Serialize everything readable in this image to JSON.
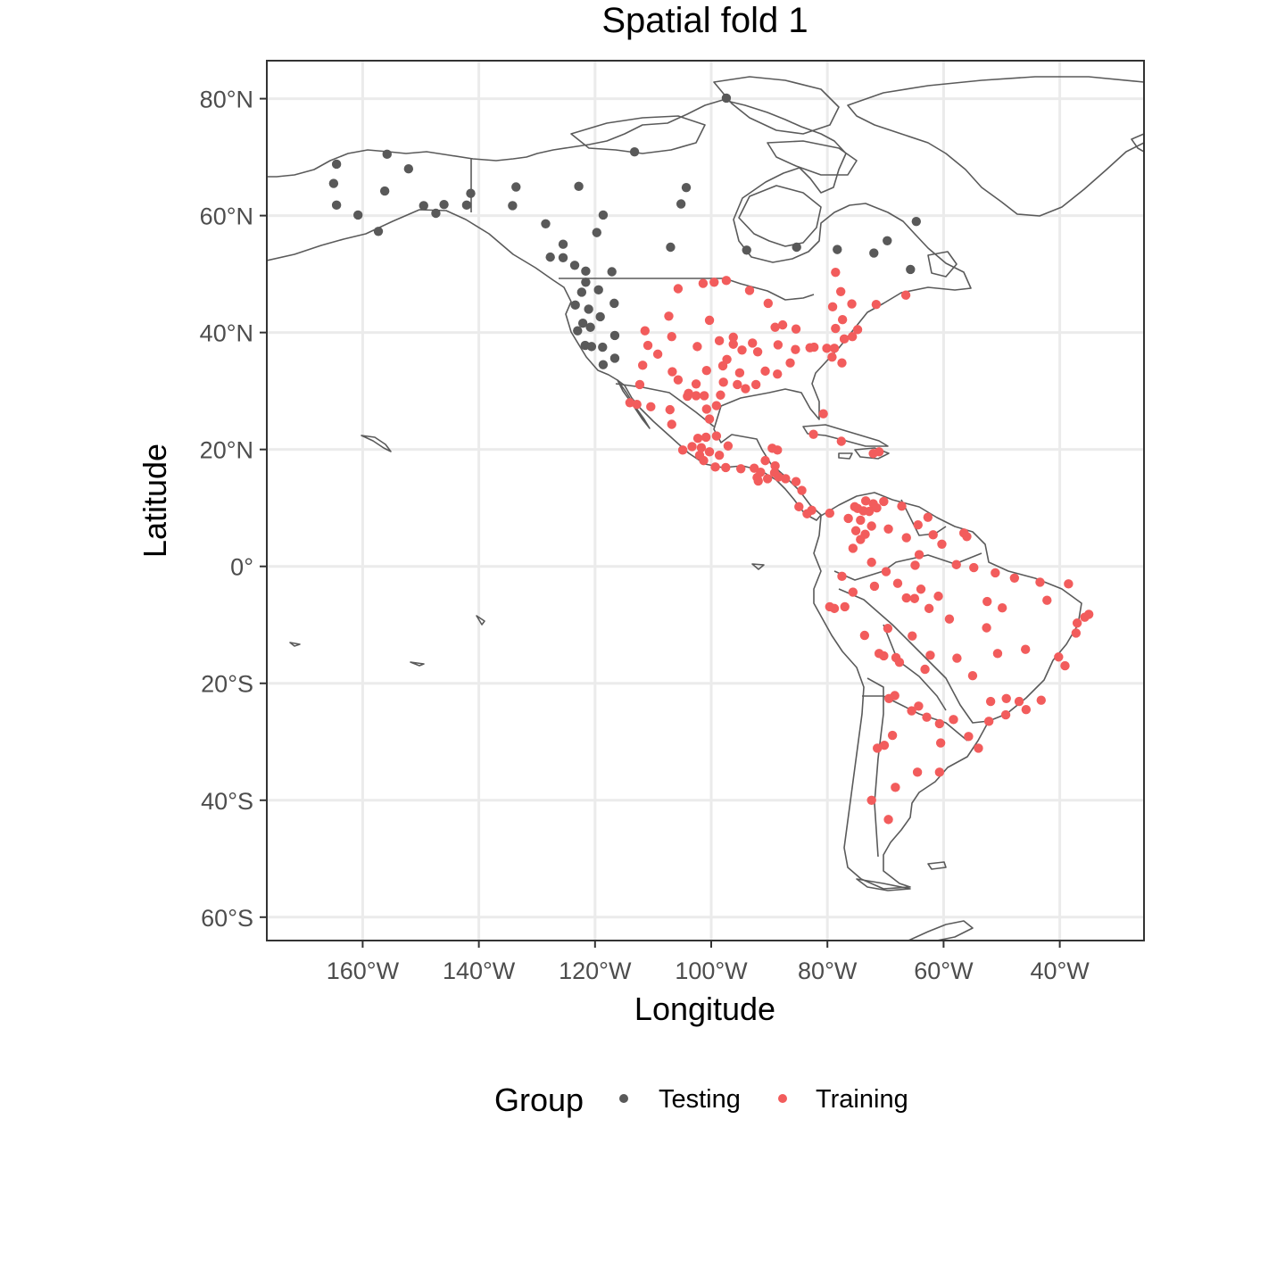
{
  "chart_data": {
    "type": "scatter",
    "title": "Spatial fold 1",
    "xlabel": "Longitude",
    "ylabel": "Latitude",
    "xlim": [
      -176.5,
      -25.5
    ],
    "ylim": [
      -64,
      86.5
    ],
    "grid": true,
    "legend": {
      "title": "Group",
      "position": "bottom"
    },
    "x_ticks": [
      {
        "value": -160,
        "label": "160°W"
      },
      {
        "value": -140,
        "label": "140°W"
      },
      {
        "value": -120,
        "label": "120°W"
      },
      {
        "value": -100,
        "label": "100°W"
      },
      {
        "value": -80,
        "label": "80°W"
      },
      {
        "value": -60,
        "label": "60°W"
      },
      {
        "value": -40,
        "label": "40°W"
      }
    ],
    "y_ticks": [
      {
        "value": 80,
        "label": "80°N"
      },
      {
        "value": 60,
        "label": "60°N"
      },
      {
        "value": 40,
        "label": "40°N"
      },
      {
        "value": 20,
        "label": "20°N"
      },
      {
        "value": 0,
        "label": "0°"
      },
      {
        "value": -20,
        "label": "20°S"
      },
      {
        "value": -40,
        "label": "40°S"
      },
      {
        "value": -60,
        "label": "60°S"
      }
    ],
    "series": [
      {
        "name": "Testing",
        "color": "#595959",
        "points": [
          [
            -164.5,
            68.8
          ],
          [
            -165.0,
            65.5
          ],
          [
            -155.8,
            70.5
          ],
          [
            -152.1,
            68.0
          ],
          [
            -156.2,
            64.2
          ],
          [
            -164.5,
            61.8
          ],
          [
            -160.8,
            60.1
          ],
          [
            -157.3,
            57.3
          ],
          [
            -147.4,
            60.4
          ],
          [
            -149.5,
            61.7
          ],
          [
            -146.0,
            61.9
          ],
          [
            -142.1,
            61.8
          ],
          [
            -141.4,
            63.8
          ],
          [
            -133.6,
            64.9
          ],
          [
            -134.2,
            61.7
          ],
          [
            -128.5,
            58.6
          ],
          [
            -122.8,
            65.0
          ],
          [
            -118.6,
            60.1
          ],
          [
            -119.7,
            57.1
          ],
          [
            -125.5,
            55.1
          ],
          [
            -125.5,
            52.8
          ],
          [
            -123.5,
            51.5
          ],
          [
            -127.7,
            52.9
          ],
          [
            -121.6,
            50.5
          ],
          [
            -121.6,
            48.6
          ],
          [
            -117.1,
            50.4
          ],
          [
            -122.3,
            46.9
          ],
          [
            -119.4,
            47.3
          ],
          [
            -123.4,
            44.7
          ],
          [
            -121.1,
            44.0
          ],
          [
            -119.1,
            42.7
          ],
          [
            -116.7,
            45.0
          ],
          [
            -120.8,
            40.9
          ],
          [
            -123.0,
            40.3
          ],
          [
            -122.1,
            41.6
          ],
          [
            -116.6,
            39.5
          ],
          [
            -121.7,
            37.8
          ],
          [
            -120.6,
            37.6
          ],
          [
            -118.7,
            37.5
          ],
          [
            -116.6,
            35.6
          ],
          [
            -118.6,
            34.5
          ],
          [
            -113.2,
            70.9
          ],
          [
            -104.3,
            64.8
          ],
          [
            -105.2,
            62.0
          ],
          [
            -107.0,
            54.6
          ],
          [
            -93.9,
            54.1
          ],
          [
            -85.3,
            54.6
          ],
          [
            -69.7,
            55.7
          ],
          [
            -64.7,
            59.0
          ],
          [
            -65.7,
            50.8
          ],
          [
            -97.4,
            80.1
          ],
          [
            -72.0,
            53.6
          ],
          [
            -78.3,
            54.2
          ]
        ]
      },
      {
        "name": "Training",
        "color": "#f25c5c",
        "points": [
          [
            -105.7,
            47.5
          ],
          [
            -101.4,
            48.4
          ],
          [
            -99.5,
            48.6
          ],
          [
            -97.4,
            48.9
          ],
          [
            -93.4,
            47.2
          ],
          [
            -90.2,
            45.0
          ],
          [
            -87.7,
            41.3
          ],
          [
            -78.6,
            50.3
          ],
          [
            -77.7,
            47.0
          ],
          [
            -79.1,
            44.4
          ],
          [
            -75.8,
            44.9
          ],
          [
            -71.6,
            44.8
          ],
          [
            -66.5,
            46.4
          ],
          [
            -77.4,
            42.2
          ],
          [
            -74.8,
            40.5
          ],
          [
            -75.7,
            39.3
          ],
          [
            -77.1,
            38.9
          ],
          [
            -78.8,
            37.3
          ],
          [
            -79.2,
            35.8
          ],
          [
            -77.5,
            34.8
          ],
          [
            -78.6,
            40.7
          ],
          [
            -82.3,
            37.5
          ],
          [
            -85.5,
            37.1
          ],
          [
            -86.4,
            34.8
          ],
          [
            -88.6,
            32.9
          ],
          [
            -90.7,
            33.4
          ],
          [
            -92.3,
            31.1
          ],
          [
            -94.1,
            30.4
          ],
          [
            -95.1,
            33.1
          ],
          [
            -97.9,
            31.5
          ],
          [
            -98.4,
            29.3
          ],
          [
            -101.2,
            29.2
          ],
          [
            -100.8,
            33.5
          ],
          [
            -102.6,
            31.2
          ],
          [
            -103.9,
            29.6
          ],
          [
            -105.7,
            31.9
          ],
          [
            -106.7,
            33.3
          ],
          [
            -109.2,
            36.3
          ],
          [
            -111.8,
            34.4
          ],
          [
            -112.3,
            31.1
          ],
          [
            -110.9,
            37.8
          ],
          [
            -111.4,
            40.3
          ],
          [
            -106.8,
            39.3
          ],
          [
            -102.4,
            37.6
          ],
          [
            -100.3,
            42.1
          ],
          [
            -98.6,
            38.6
          ],
          [
            -97.3,
            35.4
          ],
          [
            -96.2,
            38.0
          ],
          [
            -94.7,
            37.0
          ],
          [
            -92.9,
            38.2
          ],
          [
            -92.0,
            36.7
          ],
          [
            -89.0,
            40.9
          ],
          [
            -88.5,
            37.9
          ],
          [
            -85.4,
            40.6
          ],
          [
            -83.0,
            37.4
          ],
          [
            -80.1,
            37.3
          ],
          [
            -96.2,
            39.2
          ],
          [
            -98.0,
            34.3
          ],
          [
            -95.5,
            31.1
          ],
          [
            -107.3,
            42.8
          ],
          [
            -112.8,
            27.7
          ],
          [
            -114.0,
            28.0
          ],
          [
            -110.4,
            27.3
          ],
          [
            -107.1,
            26.8
          ],
          [
            -106.8,
            24.3
          ],
          [
            -104.1,
            29.1
          ],
          [
            -102.6,
            29.2
          ],
          [
            -100.8,
            26.9
          ],
          [
            -99.1,
            27.5
          ],
          [
            -100.3,
            25.2
          ],
          [
            -100.9,
            22.1
          ],
          [
            -102.3,
            21.9
          ],
          [
            -99.1,
            22.3
          ],
          [
            -104.9,
            19.9
          ],
          [
            -103.3,
            20.5
          ],
          [
            -101.7,
            20.3
          ],
          [
            -100.3,
            19.6
          ],
          [
            -98.6,
            19.0
          ],
          [
            -97.1,
            20.6
          ],
          [
            -102.0,
            19.0
          ],
          [
            -101.3,
            18.1
          ],
          [
            -99.3,
            17.0
          ],
          [
            -97.5,
            16.9
          ],
          [
            -94.9,
            16.7
          ],
          [
            -92.6,
            16.8
          ],
          [
            -91.5,
            16.1
          ],
          [
            -92.1,
            15.2
          ],
          [
            -90.3,
            15.0
          ],
          [
            -88.4,
            15.3
          ],
          [
            -91.9,
            14.6
          ],
          [
            -87.2,
            15.0
          ],
          [
            -89.0,
            17.2
          ],
          [
            -89.5,
            20.2
          ],
          [
            -88.6,
            19.9
          ],
          [
            -89.1,
            16.0
          ],
          [
            -90.7,
            18.1
          ],
          [
            -85.4,
            14.5
          ],
          [
            -84.4,
            13.0
          ],
          [
            -84.9,
            10.2
          ],
          [
            -82.7,
            9.6
          ],
          [
            -83.5,
            9.0
          ],
          [
            -79.6,
            9.1
          ],
          [
            -80.7,
            26.1
          ],
          [
            -82.4,
            22.6
          ],
          [
            -77.6,
            21.4
          ],
          [
            -72.1,
            19.3
          ],
          [
            -71.1,
            19.6
          ],
          [
            -75.3,
            10.2
          ],
          [
            -74.8,
            9.9
          ],
          [
            -73.8,
            9.5
          ],
          [
            -73.4,
            11.2
          ],
          [
            -72.1,
            10.7
          ],
          [
            -70.3,
            11.1
          ],
          [
            -67.2,
            10.3
          ],
          [
            -71.5,
            10.0
          ],
          [
            -72.8,
            9.4
          ],
          [
            -74.3,
            7.9
          ],
          [
            -76.4,
            8.2
          ],
          [
            -75.1,
            6.1
          ],
          [
            -73.5,
            5.5
          ],
          [
            -74.3,
            4.6
          ],
          [
            -75.6,
            3.1
          ],
          [
            -72.4,
            6.9
          ],
          [
            -69.5,
            6.4
          ],
          [
            -66.4,
            4.9
          ],
          [
            -64.4,
            7.1
          ],
          [
            -62.7,
            8.4
          ],
          [
            -61.8,
            5.4
          ],
          [
            -56.5,
            5.7
          ],
          [
            -56.0,
            5.1
          ],
          [
            -60.3,
            3.8
          ],
          [
            -64.2,
            2.0
          ],
          [
            -64.9,
            0.2
          ],
          [
            -69.9,
            -0.9
          ],
          [
            -72.4,
            0.7
          ],
          [
            -77.5,
            -1.7
          ],
          [
            -75.6,
            -4.4
          ],
          [
            -71.9,
            -3.4
          ],
          [
            -67.9,
            -2.9
          ],
          [
            -65.0,
            -5.5
          ],
          [
            -63.9,
            -3.9
          ],
          [
            -60.9,
            -5.1
          ],
          [
            -57.8,
            0.3
          ],
          [
            -54.8,
            -0.2
          ],
          [
            -51.1,
            -1.1
          ],
          [
            -47.8,
            -2.0
          ],
          [
            -43.4,
            -2.7
          ],
          [
            -38.5,
            -3.0
          ],
          [
            -42.2,
            -5.8
          ],
          [
            -49.9,
            -7.1
          ],
          [
            -52.5,
            -6.0
          ],
          [
            -35.0,
            -8.2
          ],
          [
            -35.7,
            -8.7
          ],
          [
            -37.0,
            -9.7
          ],
          [
            -37.2,
            -11.4
          ],
          [
            -39.1,
            -17.0
          ],
          [
            -40.2,
            -15.5
          ],
          [
            -45.9,
            -14.2
          ],
          [
            -50.7,
            -14.9
          ],
          [
            -52.6,
            -10.5
          ],
          [
            -59.0,
            -9.0
          ],
          [
            -62.5,
            -7.2
          ],
          [
            -66.4,
            -5.4
          ],
          [
            -69.6,
            -10.6
          ],
          [
            -73.6,
            -11.8
          ],
          [
            -78.8,
            -7.2
          ],
          [
            -79.6,
            -6.9
          ],
          [
            -77.0,
            -6.9
          ],
          [
            -71.1,
            -14.9
          ],
          [
            -70.3,
            -15.3
          ],
          [
            -68.2,
            -15.6
          ],
          [
            -65.4,
            -11.9
          ],
          [
            -67.6,
            -16.4
          ],
          [
            -63.2,
            -17.6
          ],
          [
            -62.3,
            -15.2
          ],
          [
            -57.7,
            -15.7
          ],
          [
            -55.0,
            -18.7
          ],
          [
            -51.9,
            -23.1
          ],
          [
            -47.0,
            -23.1
          ],
          [
            -49.2,
            -22.6
          ],
          [
            -43.2,
            -22.9
          ],
          [
            -45.8,
            -24.5
          ],
          [
            -49.3,
            -25.4
          ],
          [
            -52.2,
            -26.5
          ],
          [
            -54.0,
            -31.1
          ],
          [
            -55.7,
            -29.1
          ],
          [
            -58.3,
            -26.2
          ],
          [
            -60.7,
            -26.9
          ],
          [
            -62.9,
            -25.8
          ],
          [
            -64.3,
            -23.9
          ],
          [
            -65.5,
            -24.7
          ],
          [
            -68.4,
            -22.1
          ],
          [
            -69.4,
            -22.6
          ],
          [
            -70.2,
            -30.6
          ],
          [
            -71.4,
            -31.1
          ],
          [
            -68.8,
            -28.9
          ],
          [
            -60.5,
            -30.2
          ],
          [
            -64.5,
            -35.2
          ],
          [
            -60.7,
            -35.2
          ],
          [
            -68.3,
            -37.8
          ],
          [
            -72.4,
            -40.0
          ],
          [
            -69.5,
            -43.3
          ]
        ]
      }
    ]
  }
}
